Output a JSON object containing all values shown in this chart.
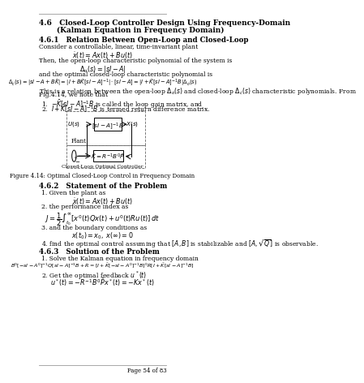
{
  "fig_caption": "Figure 4.14: Optimal Closed-Loop Control in Frequency Domain",
  "page_num": "Page 54 of 83",
  "bg_color": "#ffffff",
  "text_color": "#000000"
}
